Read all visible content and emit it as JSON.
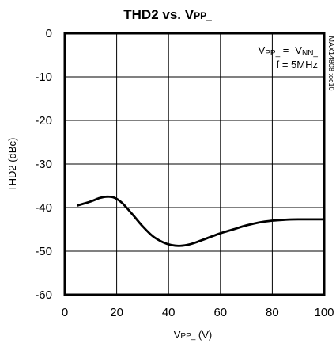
{
  "chart_data": {
    "type": "line",
    "title": {
      "main": "THD2 vs. V",
      "sub": "PP_"
    },
    "xlabel": {
      "main": "V",
      "sub": "PP_",
      "rest": " (V)"
    },
    "ylabel": "THD2 (dBc)",
    "xlim": [
      0,
      100
    ],
    "ylim": [
      -60,
      0
    ],
    "x_ticks": [
      0,
      20,
      40,
      60,
      80,
      100
    ],
    "y_ticks": [
      0,
      -10,
      -20,
      -30,
      -40,
      -50,
      -60
    ],
    "grid": true,
    "annotations": {
      "line1": {
        "main": "V",
        "sub": "PP_",
        "mid": " = -V",
        "sub2": "NN_"
      },
      "line2": "f = 5MHz"
    },
    "figure_id": "MAX14808 toc10",
    "series": [
      {
        "x": [
          5,
          10,
          13,
          16,
          19,
          22,
          26,
          30,
          34,
          38,
          41,
          44,
          47,
          50,
          55,
          60,
          65,
          70,
          75,
          80,
          85,
          90,
          95,
          100
        ],
        "y": [
          -39.5,
          -38.6,
          -37.9,
          -37.5,
          -37.7,
          -38.9,
          -41.5,
          -44.3,
          -46.6,
          -48.0,
          -48.6,
          -48.8,
          -48.6,
          -48.1,
          -47.0,
          -45.9,
          -45.0,
          -44.1,
          -43.4,
          -43.0,
          -42.8,
          -42.7,
          -42.7,
          -42.7
        ]
      }
    ]
  }
}
